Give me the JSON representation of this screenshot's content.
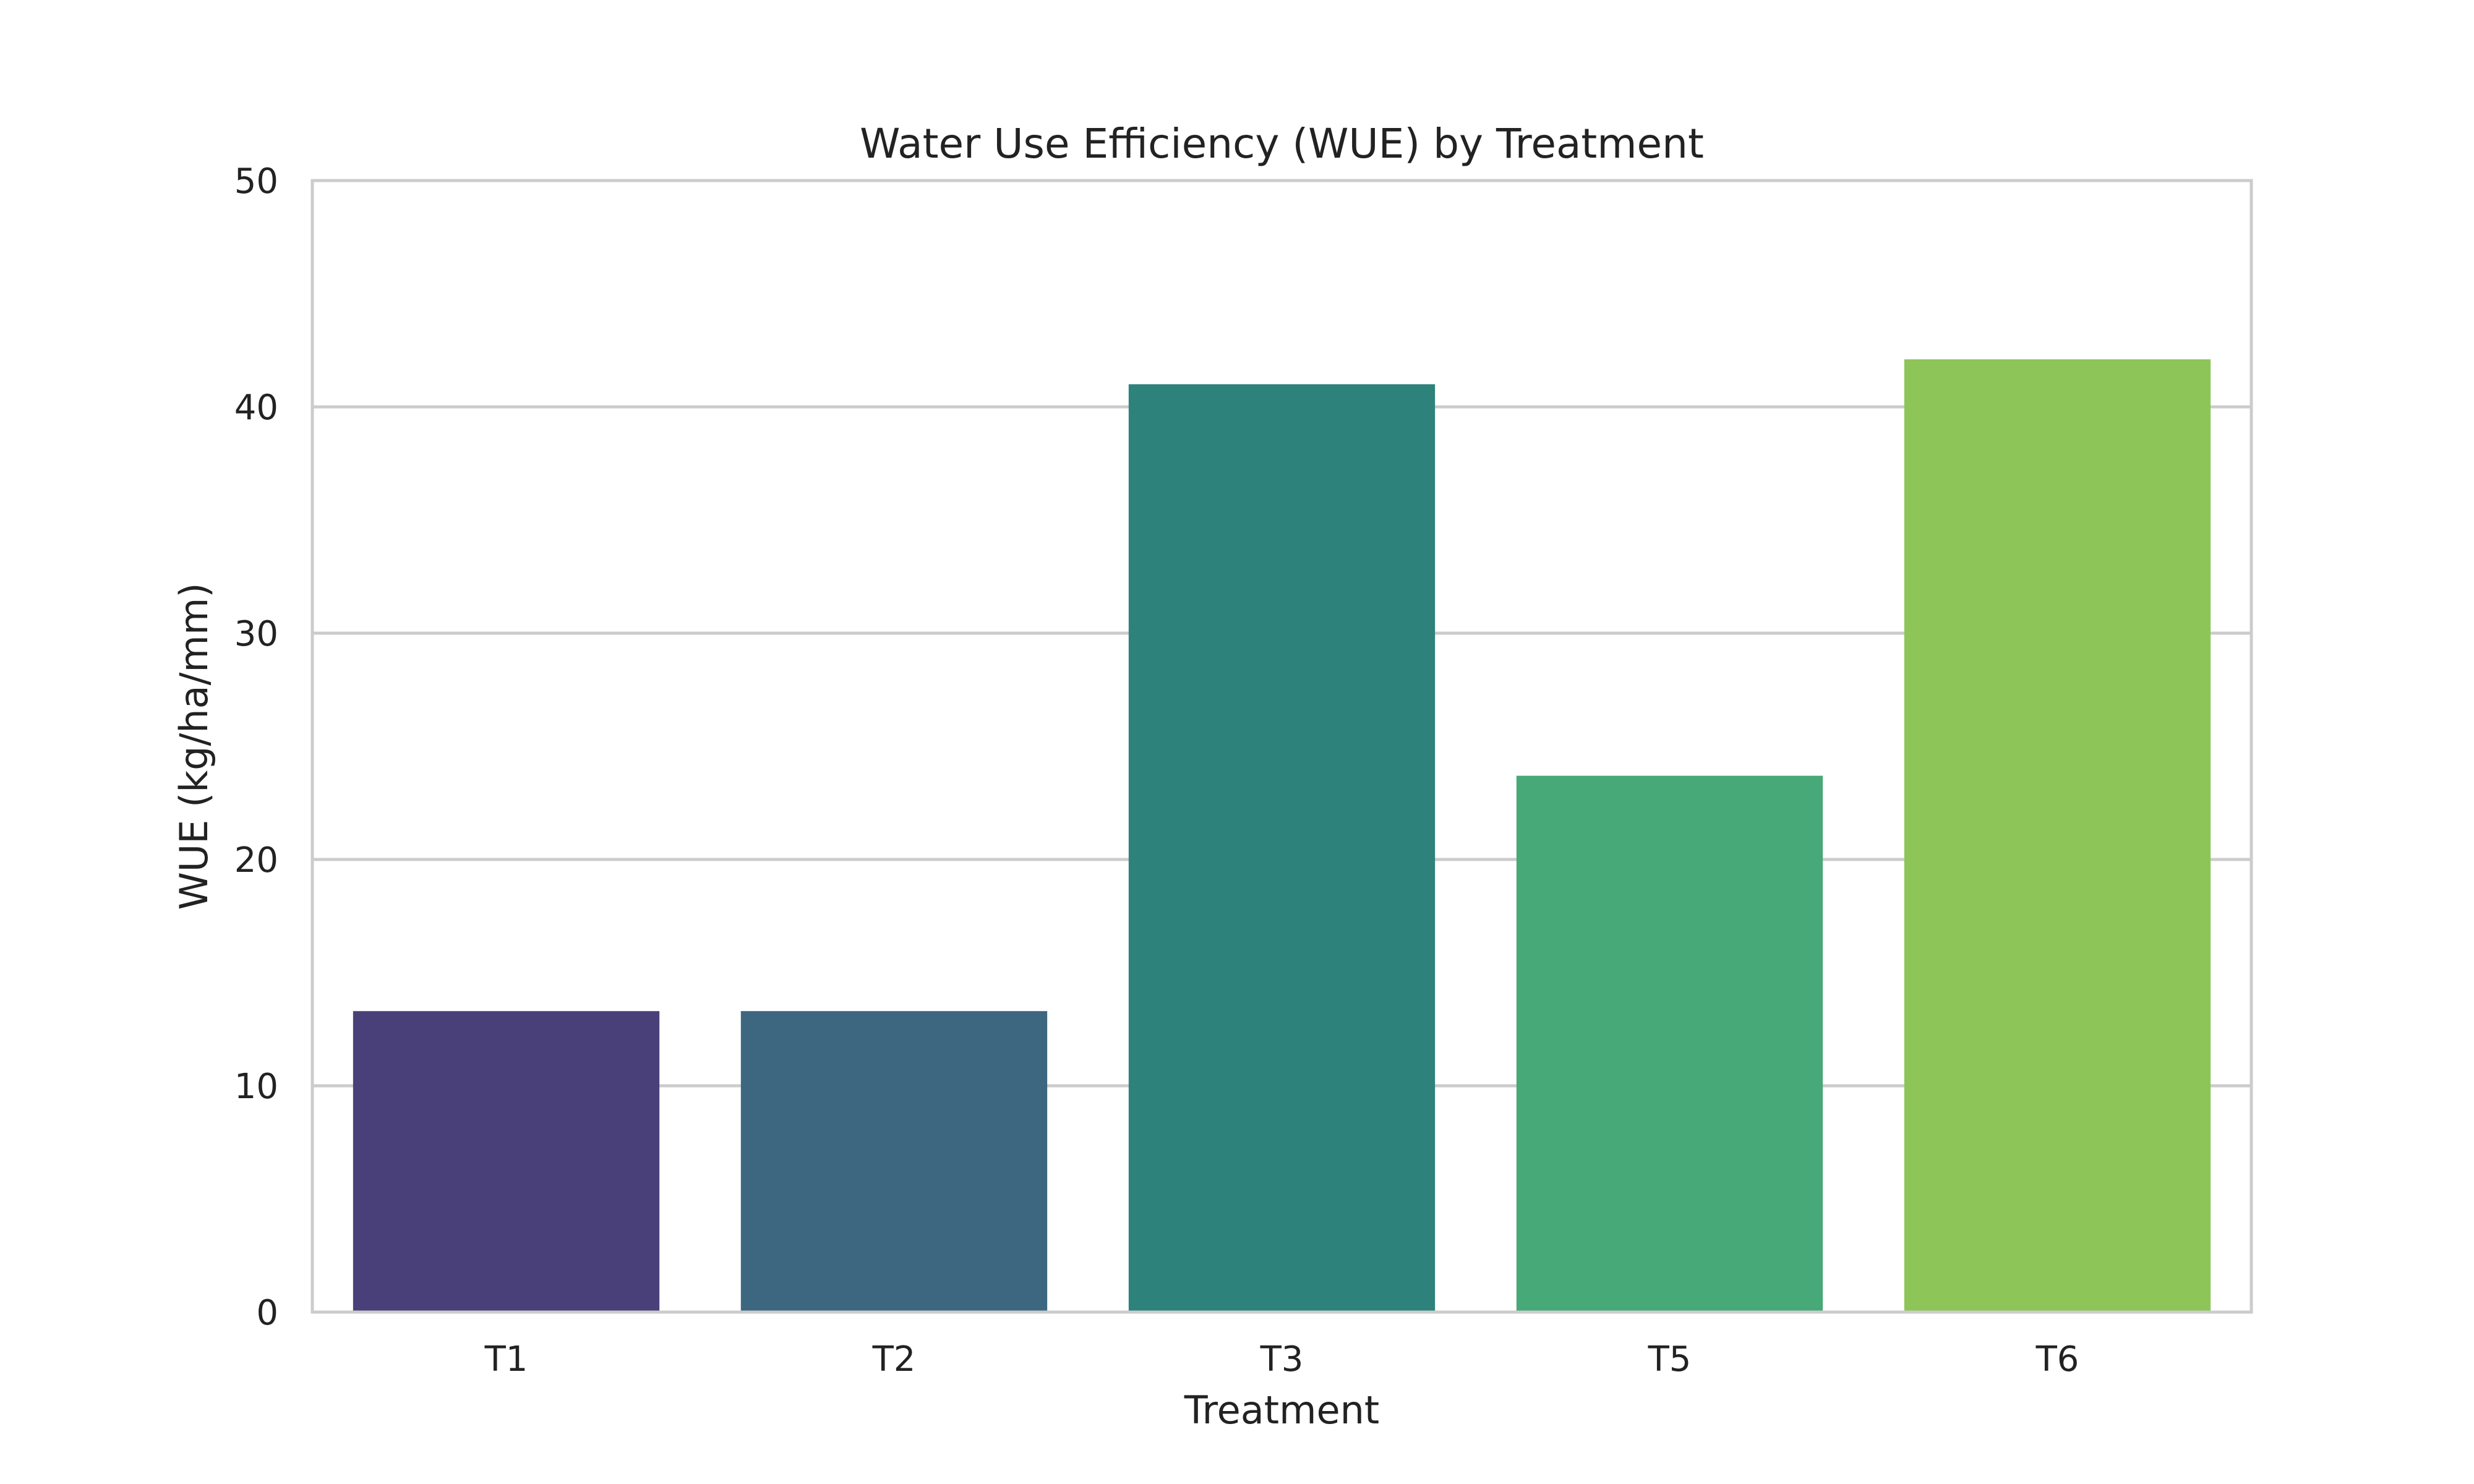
{
  "chart_data": {
    "type": "bar",
    "title": "Water Use Efficiency (WUE) by Treatment",
    "xlabel": "Treatment",
    "ylabel": "WUE (kg/ha/mm)",
    "categories": [
      "T1",
      "T2",
      "T3",
      "T5",
      "T6"
    ],
    "values": [
      13.3,
      13.3,
      41.0,
      23.7,
      42.1
    ],
    "colors": [
      "#4a4079",
      "#3d6680",
      "#2e827c",
      "#47a878",
      "#8ec558"
    ],
    "ylim": [
      0,
      50
    ],
    "yticks": [
      0,
      10,
      20,
      30,
      40,
      50
    ],
    "grid": "horizontal",
    "legend": "none"
  }
}
